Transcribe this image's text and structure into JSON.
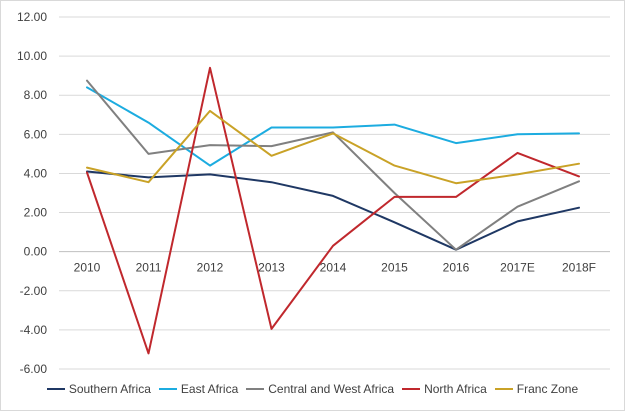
{
  "chart_data": {
    "type": "line",
    "title": "",
    "xlabel": "",
    "ylabel": "",
    "ylim": [
      -6,
      12
    ],
    "y_step": 2,
    "y_tick_format": "fixed2",
    "grid": "horizontal",
    "legend_position": "bottom",
    "categories": [
      "2010",
      "2011",
      "2012",
      "2013",
      "2014",
      "2015",
      "2016",
      "2017E",
      "2018F"
    ],
    "series": [
      {
        "name": "Southern Africa",
        "color": "#1f3864",
        "values": [
          4.1,
          3.8,
          3.95,
          3.55,
          2.85,
          1.5,
          0.1,
          1.55,
          2.25
        ]
      },
      {
        "name": "East Africa",
        "color": "#1cace0",
        "values": [
          8.4,
          6.6,
          4.4,
          6.35,
          6.35,
          6.5,
          5.55,
          6.0,
          6.05
        ]
      },
      {
        "name": "Central and West Africa",
        "color": "#808080",
        "values": [
          8.75,
          5.0,
          5.45,
          5.4,
          6.1,
          3.0,
          0.1,
          2.3,
          3.6
        ]
      },
      {
        "name": "North Africa",
        "color": "#c0282d",
        "values": [
          4.05,
          -5.2,
          9.4,
          -3.95,
          0.3,
          2.8,
          2.8,
          5.05,
          3.85
        ]
      },
      {
        "name": "Franc Zone",
        "color": "#c9a227",
        "values": [
          4.3,
          3.55,
          7.2,
          4.9,
          6.05,
          4.4,
          3.5,
          3.95,
          4.5
        ]
      }
    ]
  }
}
